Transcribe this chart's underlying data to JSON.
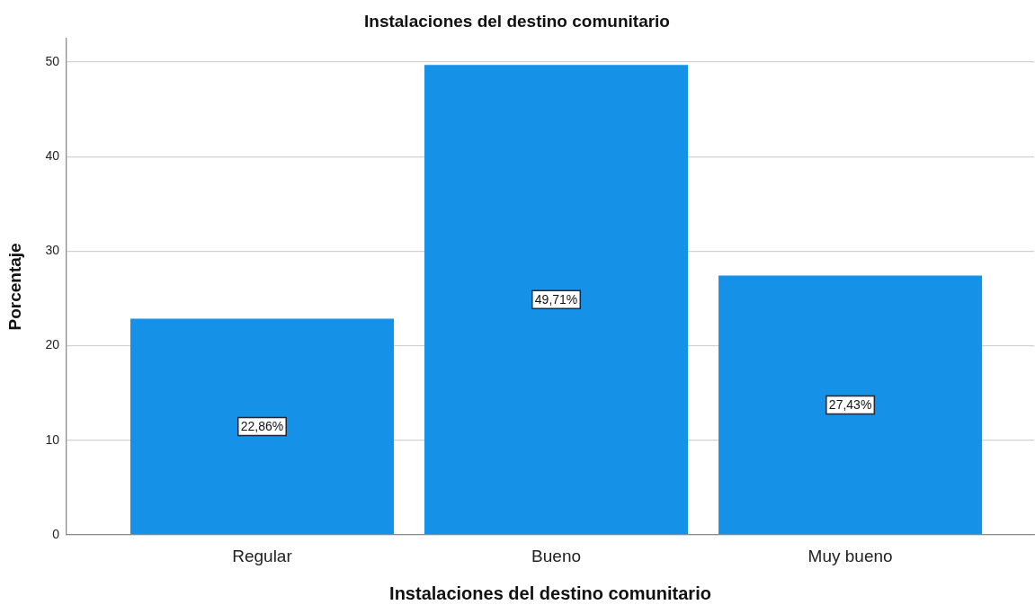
{
  "chart_data": {
    "type": "bar",
    "title": "Instalaciones del destino comunitario",
    "xlabel": "Instalaciones del destino comunitario",
    "ylabel": "Porcentaje",
    "categories": [
      "Regular",
      "Bueno",
      "Muy bueno"
    ],
    "values": [
      22.86,
      49.71,
      27.43
    ],
    "value_labels": [
      "22,86%",
      "49,71%",
      "27,43%"
    ],
    "color": "#1591e8",
    "ylim": [
      0,
      52.5
    ],
    "yticks": [
      0,
      10,
      20,
      30,
      40,
      50
    ],
    "grid": "y"
  }
}
